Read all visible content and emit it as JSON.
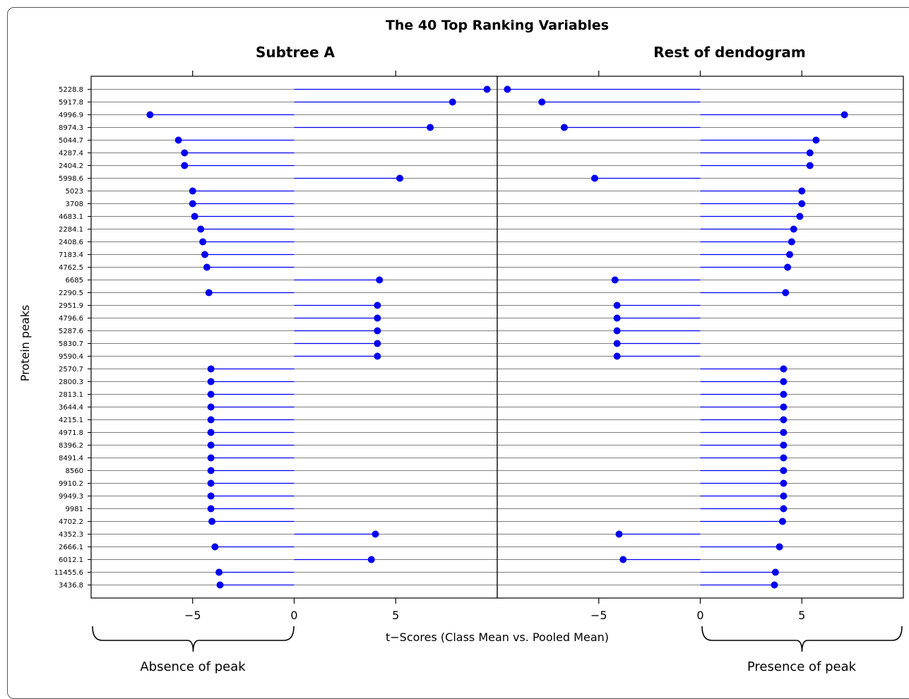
{
  "chart_data": {
    "type": "dot",
    "title": "The 40 Top Ranking Variables",
    "xlabel": "t−Scores (Class Mean vs. Pooled Mean)",
    "ylabel": "Protein peaks",
    "xlim": [
      -10,
      10
    ],
    "xticks": [
      -5,
      0,
      5
    ],
    "xtick_labels": [
      "−5",
      "0",
      "5"
    ],
    "categories": [
      "5228.8",
      "5917.8",
      "4996.9",
      "8974.3",
      "5044.7",
      "4287.4",
      "2404.2",
      "5998.6",
      "5023",
      "3708",
      "4683.1",
      "2284.1",
      "2408.6",
      "7183.4",
      "4762.5",
      "6685",
      "2290.5",
      "2951.9",
      "4796.6",
      "5287.6",
      "5830.7",
      "9590.4",
      "2570.7",
      "2800.3",
      "2813.1",
      "3644.4",
      "4215.1",
      "4971.8",
      "8396.2",
      "8491.4",
      "8560",
      "9910.2",
      "9949.3",
      "9981",
      "4702.2",
      "4352.3",
      "2666.1",
      "6012.1",
      "11455.6",
      "3436.8"
    ],
    "series": [
      {
        "name": "Subtree A",
        "values": [
          9.5,
          7.8,
          -7.1,
          6.7,
          -5.7,
          -5.4,
          -5.4,
          5.2,
          -5.0,
          -5.0,
          -4.9,
          -4.6,
          -4.5,
          -4.4,
          -4.3,
          4.2,
          -4.2,
          4.1,
          4.1,
          4.1,
          4.1,
          4.1,
          -4.1,
          -4.1,
          -4.1,
          -4.1,
          -4.1,
          -4.1,
          -4.1,
          -4.1,
          -4.1,
          -4.1,
          -4.1,
          -4.1,
          -4.05,
          4.0,
          -3.9,
          3.8,
          -3.7,
          -3.65
        ]
      },
      {
        "name": "Rest of dendogram",
        "values": [
          -9.5,
          -7.8,
          7.1,
          -6.7,
          5.7,
          5.4,
          5.4,
          -5.2,
          5.0,
          5.0,
          4.9,
          4.6,
          4.5,
          4.4,
          4.3,
          -4.2,
          4.2,
          -4.1,
          -4.1,
          -4.1,
          -4.1,
          -4.1,
          4.1,
          4.1,
          4.1,
          4.1,
          4.1,
          4.1,
          4.1,
          4.1,
          4.1,
          4.1,
          4.1,
          4.1,
          4.05,
          -4.0,
          3.9,
          -3.8,
          3.7,
          3.65
        ]
      }
    ],
    "annotations": {
      "left": "Absence of peak",
      "right": "Presence of peak"
    },
    "colors": {
      "marker": "#0000ee",
      "line": "#0000ee",
      "grid": "#555555"
    }
  }
}
